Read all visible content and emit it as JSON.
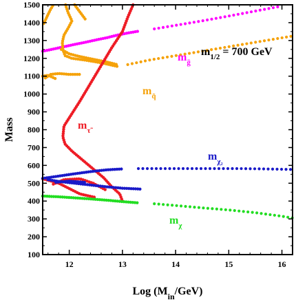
{
  "chart_data": {
    "type": "scatter",
    "xlabel": "Log (M",
    "xlabel_sub": "in",
    "xlabel_tail": "/GeV)",
    "ylabel": "Mass",
    "xlim": [
      11.5,
      16.2
    ],
    "ylim": [
      100,
      1500
    ],
    "xticks": [
      12,
      13,
      14,
      15,
      16
    ],
    "yticks": [
      100,
      200,
      300,
      400,
      500,
      600,
      700,
      800,
      900,
      1000,
      1100,
      1200,
      1300,
      1400,
      1500
    ],
    "grid": false,
    "annotation": {
      "base": "m",
      "sub": "1/2",
      "tail": " = 700 GeV"
    },
    "series": [
      {
        "name_base": "m",
        "name_sub": "g̃",
        "color": "#ff00ff",
        "branches": [
          {
            "dense": [
              [
                11.5,
                1240
              ],
              [
                11.7,
                1252
              ],
              [
                11.9,
                1265
              ],
              [
                12.1,
                1278
              ],
              [
                12.3,
                1290
              ],
              [
                12.5,
                1303
              ],
              [
                12.7,
                1315
              ],
              [
                12.9,
                1330
              ],
              [
                13.1,
                1342
              ],
              [
                13.3,
                1352
              ]
            ],
            "sparse": [
              [
                13.6,
                1365
              ],
              [
                14.0,
                1385
              ],
              [
                14.5,
                1410
              ],
              [
                15.0,
                1437
              ],
              [
                15.5,
                1465
              ],
              [
                16.0,
                1493
              ]
            ]
          }
        ]
      },
      {
        "name_base": "m",
        "name_sub": "q̃",
        "color": "#f5a20a",
        "branches": [
          {
            "dense": [
              [
                11.93,
                1500
              ],
              [
                11.98,
                1455
              ],
              [
                12.05,
                1410
              ],
              [
                11.98,
                1370
              ],
              [
                11.9,
                1330
              ],
              [
                11.87,
                1290
              ],
              [
                11.88,
                1250
              ],
              [
                11.92,
                1215
              ],
              [
                12.05,
                1200
              ],
              [
                12.3,
                1190
              ],
              [
                12.6,
                1175
              ],
              [
                12.9,
                1155
              ]
            ],
            "sparse": [
              [
                13.1,
                1165
              ],
              [
                13.5,
                1190
              ],
              [
                14.0,
                1215
              ],
              [
                14.5,
                1240
              ],
              [
                15.0,
                1265
              ],
              [
                15.5,
                1290
              ],
              [
                16.2,
                1325
              ]
            ]
          },
          {
            "dense": [
              [
                12.1,
                1500
              ],
              [
                12.2,
                1460
              ],
              [
                12.3,
                1420
              ]
            ]
          },
          {
            "dense": [
              [
                11.85,
                1250
              ],
              [
                12.0,
                1225
              ],
              [
                12.2,
                1210
              ],
              [
                12.45,
                1195
              ],
              [
                12.7,
                1180
              ],
              [
                12.9,
                1165
              ]
            ]
          },
          {
            "dense": [
              [
                11.52,
                1395
              ],
              [
                11.56,
                1420
              ],
              [
                11.6,
                1445
              ],
              [
                11.64,
                1470
              ],
              [
                11.7,
                1500
              ]
            ]
          },
          {
            "dense": [
              [
                11.55,
                1090
              ],
              [
                11.65,
                1110
              ],
              [
                11.8,
                1115
              ],
              [
                12.0,
                1110
              ],
              [
                12.2,
                1110
              ]
            ]
          },
          {
            "dense": [
              [
                11.5,
                1100
              ],
              [
                11.6,
                1105
              ],
              [
                11.75,
                1085
              ]
            ]
          }
        ]
      },
      {
        "name_base": "m",
        "name_sub": "τ̃",
        "color": "#ee1c25",
        "branches": [
          {
            "dense": [
              [
                13.2,
                1500
              ],
              [
                13.1,
                1430
              ],
              [
                13.0,
                1350
              ],
              [
                12.8,
                1260
              ],
              [
                12.6,
                1160
              ],
              [
                12.4,
                1060
              ],
              [
                12.2,
                960
              ],
              [
                12.05,
                890
              ],
              [
                11.9,
                820
              ],
              [
                11.88,
                760
              ],
              [
                11.92,
                720
              ],
              [
                12.05,
                680
              ],
              [
                12.25,
                630
              ],
              [
                12.45,
                580
              ],
              [
                12.65,
                530
              ],
              [
                12.8,
                480
              ],
              [
                12.95,
                440
              ],
              [
                13.0,
                400
              ]
            ]
          },
          {
            "dense": [
              [
                11.5,
                525
              ],
              [
                11.8,
                500
              ],
              [
                12.0,
                470
              ],
              [
                12.2,
                440
              ],
              [
                12.5,
                420
              ]
            ]
          },
          {
            "dense": [
              [
                11.7,
                495
              ],
              [
                11.9,
                520
              ],
              [
                12.2,
                525
              ],
              [
                12.45,
                500
              ],
              [
                12.7,
                460
              ]
            ]
          }
        ]
      },
      {
        "name_base": "m",
        "name_sub": "χ₂",
        "color": "#1a1ac8",
        "branches": [
          {
            "dense": [
              [
                11.5,
                527
              ],
              [
                11.8,
                540
              ],
              [
                12.1,
                553
              ],
              [
                12.4,
                565
              ],
              [
                12.7,
                575
              ],
              [
                13.0,
                580
              ]
            ],
            "sparse": [
              [
                13.3,
                582
              ],
              [
                13.7,
                582
              ],
              [
                14.2,
                582
              ],
              [
                14.7,
                582
              ],
              [
                15.2,
                582
              ],
              [
                15.7,
                580
              ],
              [
                16.2,
                577
              ]
            ]
          },
          {
            "dense": [
              [
                11.6,
                520
              ],
              [
                11.8,
                510
              ],
              [
                12.1,
                500
              ],
              [
                12.4,
                490
              ],
              [
                12.7,
                480
              ],
              [
                13.0,
                472
              ],
              [
                13.35,
                467
              ]
            ]
          },
          {
            "dense": [
              [
                11.75,
                505
              ],
              [
                12.0,
                512
              ],
              [
                12.3,
                505
              ]
            ]
          }
        ]
      },
      {
        "name_base": "m",
        "name_sub": "χ",
        "color": "#22dd22",
        "branches": [
          {
            "dense": [
              [
                11.5,
                428
              ],
              [
                11.8,
                424
              ],
              [
                12.1,
                418
              ],
              [
                12.4,
                412
              ],
              [
                12.7,
                405
              ],
              [
                13.0,
                397
              ],
              [
                13.3,
                390
              ]
            ],
            "sparse": [
              [
                13.6,
                385
              ],
              [
                14.0,
                375
              ],
              [
                14.5,
                362
              ],
              [
                15.0,
                350
              ],
              [
                15.5,
                335
              ],
              [
                16.0,
                315
              ],
              [
                16.2,
                305
              ]
            ]
          }
        ]
      }
    ]
  }
}
